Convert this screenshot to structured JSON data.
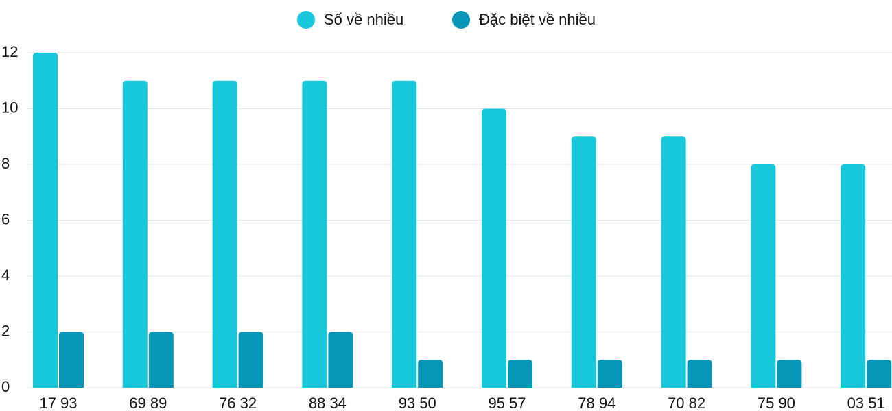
{
  "chart_data": {
    "type": "bar",
    "categories": [
      "17 93",
      "69 89",
      "76 32",
      "88 34",
      "93 50",
      "95 57",
      "78 94",
      "70 82",
      "75 90",
      "03 51"
    ],
    "series": [
      {
        "name": "Số về nhiều",
        "color": "#1ac8db",
        "values": [
          12,
          11,
          11,
          11,
          11,
          10,
          9,
          9,
          8,
          8
        ]
      },
      {
        "name": "Đặc biệt về nhiều",
        "color": "#0596b8",
        "values": [
          2,
          2,
          2,
          2,
          1,
          1,
          1,
          1,
          1,
          1
        ]
      }
    ],
    "ylim": [
      0,
      12
    ],
    "yticks": [
      0,
      2,
      4,
      6,
      8,
      10,
      12
    ],
    "grid": true,
    "legend": "top"
  }
}
